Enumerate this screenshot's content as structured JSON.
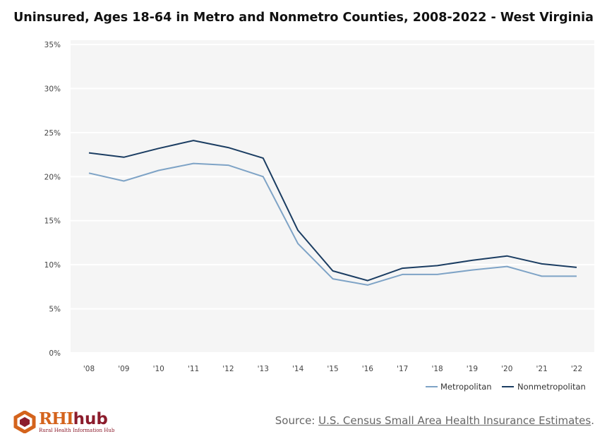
{
  "chart_data": {
    "type": "line",
    "title": "Uninsured, Ages 18-64 in Metro and Nonmetro Counties, 2008-2022 - West Virginia",
    "categories": [
      "'08",
      "'09",
      "'10",
      "'11",
      "'12",
      "'13",
      "'14",
      "'15",
      "'16",
      "'17",
      "'18",
      "'19",
      "'20",
      "'21",
      "'22"
    ],
    "series": [
      {
        "name": "Metropolitan",
        "color": "#7ea3c6",
        "values": [
          20.4,
          19.5,
          20.7,
          21.5,
          21.3,
          20.0,
          12.4,
          8.4,
          7.7,
          8.9,
          8.9,
          9.4,
          9.8,
          8.7,
          8.7
        ]
      },
      {
        "name": "Nonmetropolitan",
        "color": "#1b3d62",
        "values": [
          22.7,
          22.2,
          23.2,
          24.1,
          23.3,
          22.1,
          13.9,
          9.3,
          8.2,
          9.6,
          9.9,
          10.5,
          11.0,
          10.1,
          9.7
        ]
      }
    ],
    "yticks": [
      "0%",
      "5%",
      "10%",
      "15%",
      "20%",
      "25%",
      "30%",
      "35%"
    ],
    "ylim": [
      0,
      35
    ],
    "grid": true,
    "legend": "bottom-right"
  },
  "source": {
    "prefix": "Source: ",
    "link_text": "U.S. Census Small Area Health Insurance Estimates",
    "suffix": "."
  },
  "logo": {
    "word_rhi": "RHI",
    "word_hub": "hub",
    "subtitle": "Rural Health Information Hub"
  }
}
